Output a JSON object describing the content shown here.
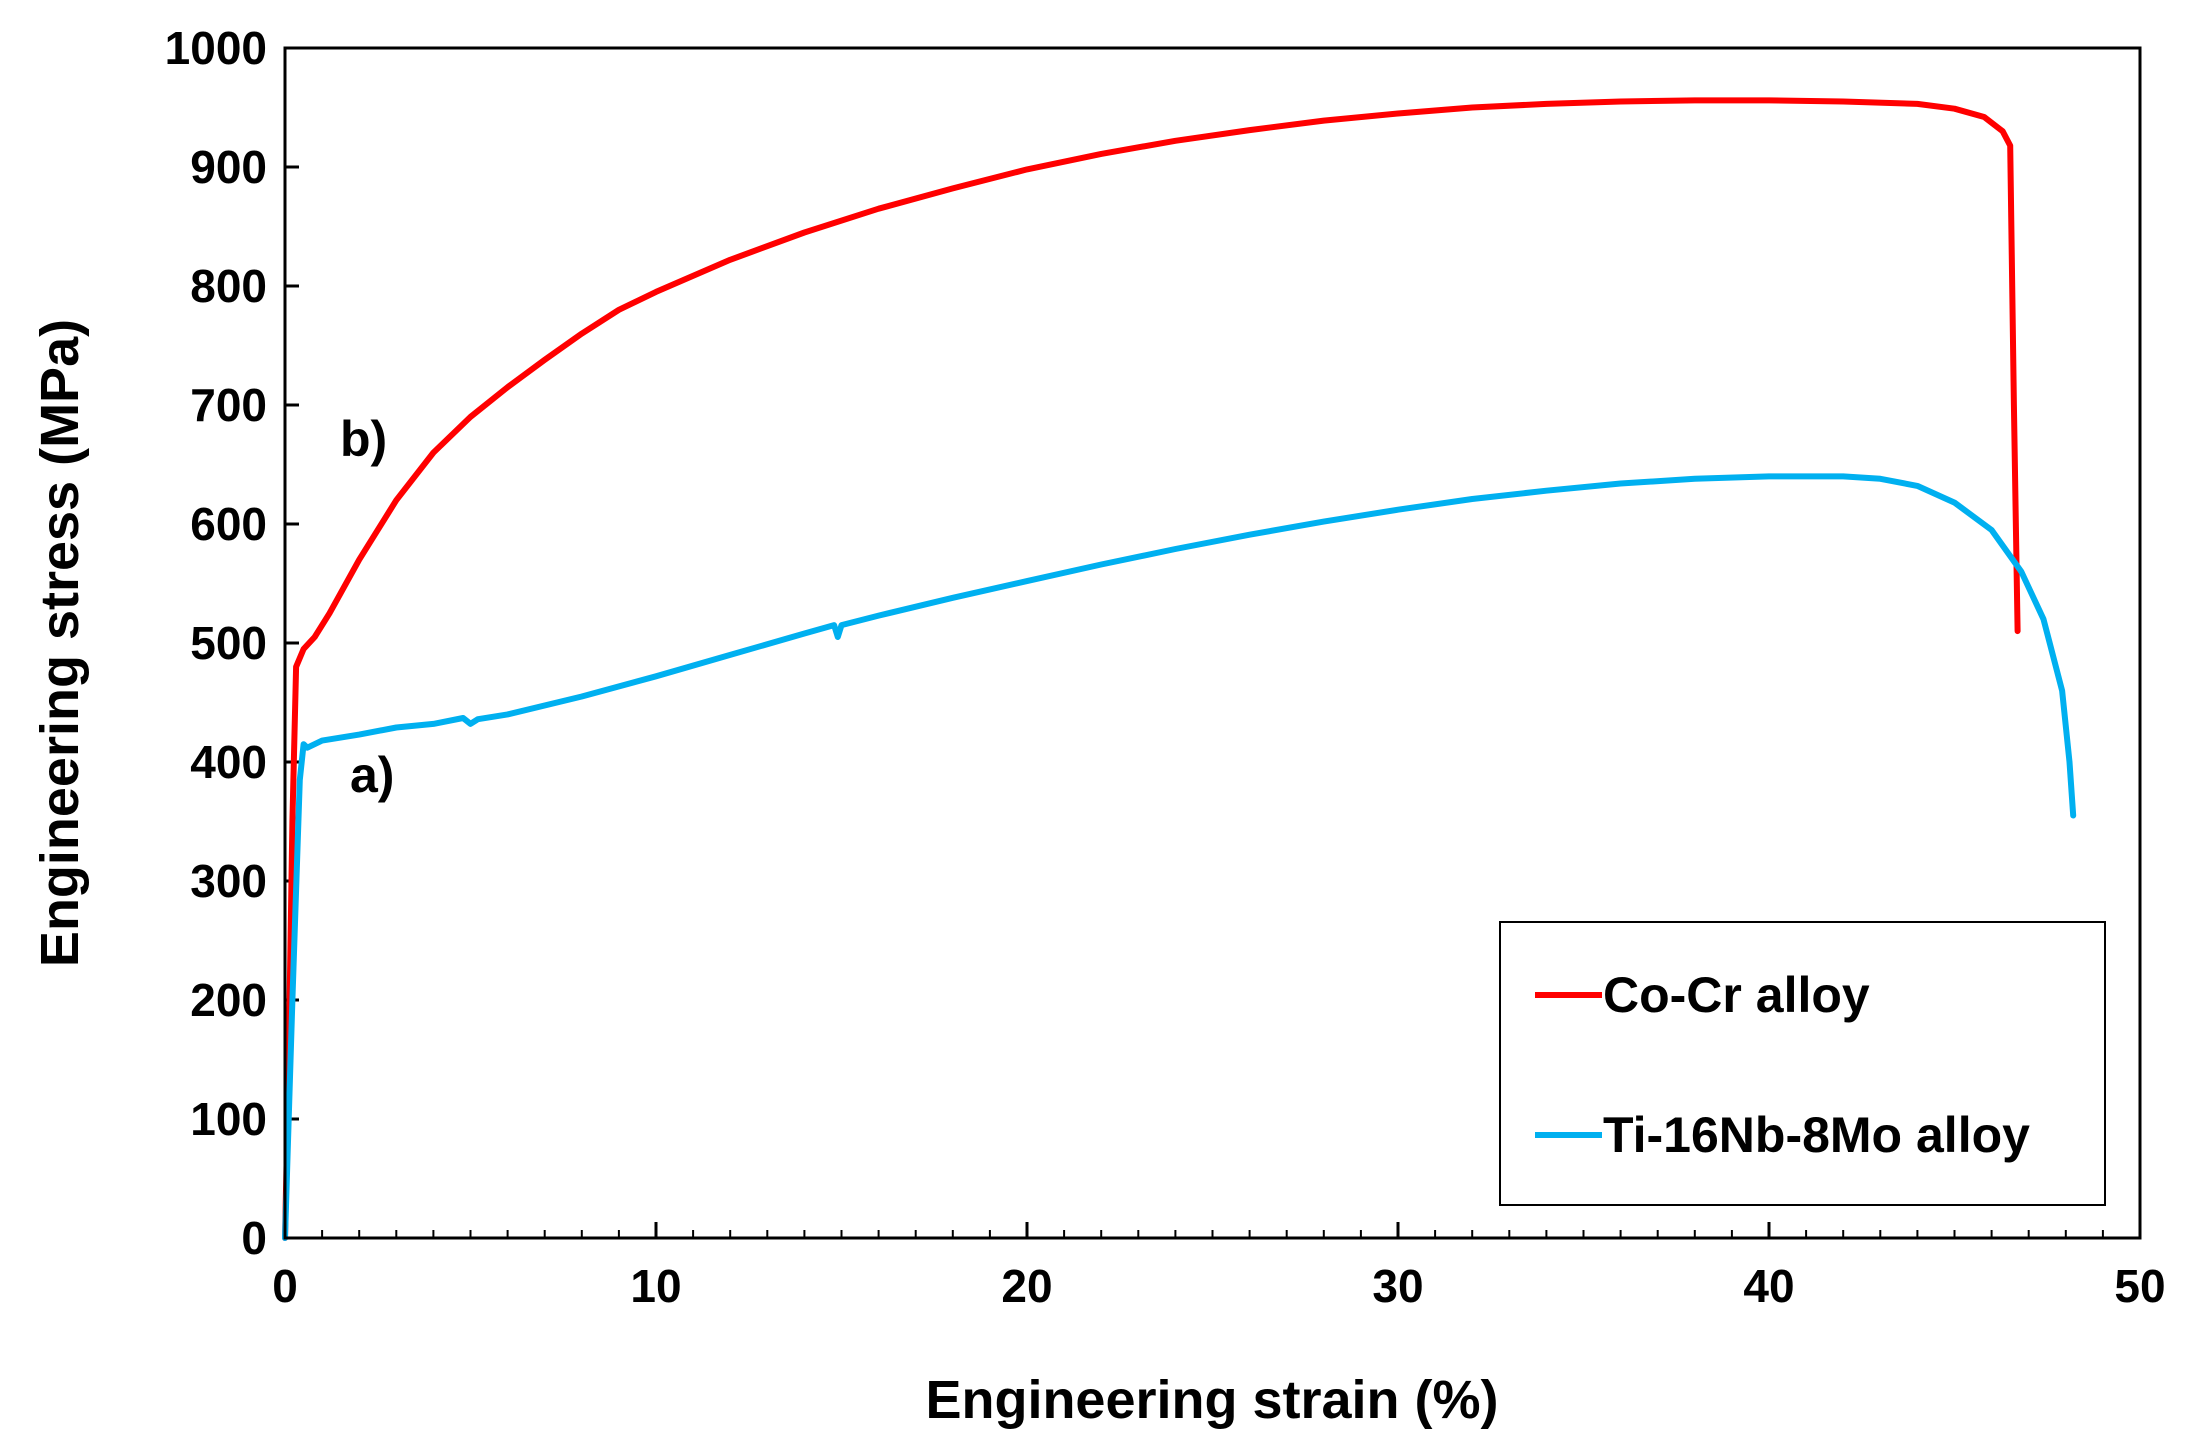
{
  "chart_data": {
    "type": "line",
    "title": "",
    "xlabel": "Engineering strain (%)",
    "ylabel": "Engineering stress (MPa)",
    "xlim": [
      0,
      50
    ],
    "ylim": [
      0,
      1000
    ],
    "x_ticks": [
      "0",
      "10",
      "20",
      "30",
      "40",
      "50"
    ],
    "y_ticks": [
      "0",
      "100",
      "200",
      "300",
      "400",
      "500",
      "600",
      "700",
      "800",
      "900",
      "1000"
    ],
    "grid": false,
    "legend_position": "bottom-right",
    "annotations": [
      {
        "text": "b)",
        "x": 2.3,
        "y": 665
      },
      {
        "text": "a)",
        "x": 2.3,
        "y": 390
      }
    ],
    "series": [
      {
        "name": "Co-Cr alloy",
        "color": "#ff0000",
        "x": [
          0,
          0.1,
          0.2,
          0.3,
          0.5,
          0.8,
          1.2,
          2,
          3,
          4,
          5,
          6,
          7,
          8,
          9,
          10,
          12,
          14,
          16,
          18,
          20,
          22,
          24,
          26,
          28,
          30,
          32,
          34,
          36,
          38,
          40,
          42,
          44,
          45,
          45.8,
          46.3,
          46.5,
          46.6,
          46.7
        ],
        "y": [
          0,
          150,
          350,
          480,
          495,
          505,
          525,
          570,
          620,
          660,
          690,
          715,
          738,
          760,
          780,
          795,
          822,
          845,
          865,
          882,
          898,
          911,
          922,
          931,
          939,
          945,
          950,
          953,
          955,
          956,
          956,
          955,
          953,
          949,
          942,
          930,
          918,
          700,
          510
        ]
      },
      {
        "name": "Ti-16Nb-8Mo alloy",
        "color": "#00b0f0",
        "x": [
          0,
          0.2,
          0.4,
          0.5,
          0.6,
          1,
          2,
          3,
          4,
          4.8,
          5,
          5.2,
          6,
          8,
          10,
          12,
          14,
          14.8,
          14.9,
          15,
          16,
          18,
          20,
          22,
          24,
          26,
          28,
          30,
          32,
          34,
          36,
          38,
          40,
          42,
          43,
          44,
          45,
          46,
          46.8,
          47.4,
          47.9,
          48.1,
          48.2
        ],
        "y": [
          0,
          200,
          385,
          415,
          412,
          418,
          423,
          429,
          432,
          437,
          432,
          436,
          440,
          455,
          472,
          490,
          508,
          515,
          505,
          515,
          523,
          538,
          552,
          566,
          579,
          591,
          602,
          612,
          621,
          628,
          634,
          638,
          640,
          640,
          638,
          632,
          618,
          595,
          560,
          520,
          460,
          400,
          355
        ]
      }
    ]
  }
}
